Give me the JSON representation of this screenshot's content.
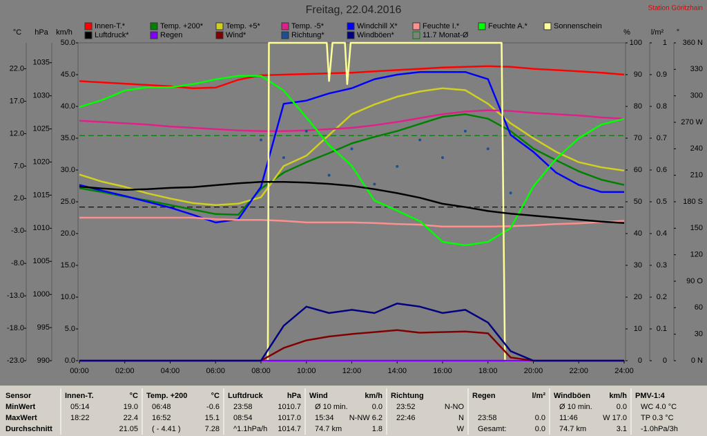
{
  "chart_data": {
    "type": "line",
    "title": "Freitag, 22.04.2016",
    "station": "Station Göritzhain",
    "x": [
      0,
      1,
      2,
      3,
      4,
      5,
      6,
      7,
      8,
      9,
      10,
      11,
      12,
      13,
      14,
      15,
      16,
      17,
      18,
      19,
      20,
      21,
      22,
      23,
      24
    ],
    "xlim": [
      0,
      24
    ],
    "xticks": [
      {
        "value": 0,
        "label": "00:00"
      },
      {
        "value": 2,
        "label": "02:00"
      },
      {
        "value": 4,
        "label": "04:00"
      },
      {
        "value": 6,
        "label": "06:00"
      },
      {
        "value": 8,
        "label": "08:00"
      },
      {
        "value": 10,
        "label": "10:00"
      },
      {
        "value": 12,
        "label": "12:00"
      },
      {
        "value": 14,
        "label": "14:00"
      },
      {
        "value": 16,
        "label": "16:00"
      },
      {
        "value": 18,
        "label": "18:00"
      },
      {
        "value": 20,
        "label": "20:00"
      },
      {
        "value": 22,
        "label": "22:00"
      },
      {
        "value": 24,
        "label": "24:00"
      }
    ],
    "y_axes": [
      {
        "label": "°C",
        "lim": [
          -23,
          26
        ],
        "ticks": [
          {
            "value": 22,
            "label": "22.0"
          },
          {
            "value": 17,
            "label": "17.0"
          },
          {
            "value": 12,
            "label": "12.0"
          },
          {
            "value": 7,
            "label": "7.0"
          },
          {
            "value": 2,
            "label": "2.0"
          },
          {
            "value": -3,
            "label": "-3.0"
          },
          {
            "value": -8,
            "label": "-8.0"
          },
          {
            "value": -13,
            "label": "-13.0"
          },
          {
            "value": -18,
            "label": "-18.0"
          },
          {
            "value": -23,
            "label": "-23.0"
          }
        ]
      },
      {
        "label": "hPa",
        "lim": [
          990,
          1038
        ],
        "ticks": [
          1035,
          1030,
          1025,
          1020,
          1015,
          1010,
          1005,
          1000,
          995,
          990
        ]
      },
      {
        "label": "km/h",
        "lim": [
          0,
          50
        ],
        "ticks": [
          {
            "value": 50,
            "label": "50.0"
          },
          {
            "value": 45,
            "label": "45.0"
          },
          {
            "value": 40,
            "label": "40.0"
          },
          {
            "value": 35,
            "label": "35.0"
          },
          {
            "value": 30,
            "label": "30.0"
          },
          {
            "value": 25,
            "label": "25.0"
          },
          {
            "value": 20,
            "label": "20.0"
          },
          {
            "value": 15,
            "label": "15.0"
          },
          {
            "value": 10,
            "label": "10.0"
          },
          {
            "value": 5,
            "label": "5.0"
          },
          {
            "value": 0,
            "label": "0.0"
          }
        ]
      },
      {
        "label": "%",
        "lim": [
          0,
          100
        ],
        "ticks": [
          100,
          90,
          80,
          70,
          60,
          50,
          40,
          30,
          20,
          10,
          0
        ]
      },
      {
        "label": "l/m²",
        "lim": [
          0,
          1
        ],
        "ticks": [
          1,
          0.9,
          0.8,
          0.7,
          0.6,
          0.5,
          0.4,
          0.3,
          0.2,
          0.1,
          0
        ]
      },
      {
        "label": "°",
        "lim": [
          0,
          360
        ],
        "ticks": [
          {
            "value": 360,
            "label": "360 N"
          },
          330,
          300,
          {
            "value": 270,
            "label": "270 W"
          },
          240,
          210,
          {
            "value": 180,
            "label": "180 S"
          },
          150,
          120,
          {
            "value": 90,
            "label": "90 O"
          },
          60,
          30,
          {
            "value": 0,
            "label": "0 N"
          }
        ]
      }
    ],
    "series": [
      {
        "name": "Innen-T.*",
        "color": "#ff0000",
        "axis": 0,
        "values": [
          20.1,
          19.9,
          19.7,
          19.5,
          19.3,
          19.0,
          19.1,
          20.3,
          21.0,
          21.1,
          21.2,
          21.3,
          21.4,
          21.6,
          21.8,
          22.0,
          22.2,
          22.3,
          22.4,
          22.3,
          22.0,
          21.8,
          21.6,
          21.4,
          21.1
        ]
      },
      {
        "name": "Temp. +200*",
        "color": "#008000",
        "axis": 0,
        "values": [
          3.6,
          3.0,
          2.3,
          1.7,
          1.0,
          0.3,
          -0.4,
          -0.5,
          3.5,
          6.0,
          7.6,
          9.0,
          10.5,
          11.5,
          12.4,
          13.5,
          14.6,
          15.0,
          14.3,
          12.4,
          9.7,
          7.9,
          6.2,
          4.9,
          4.1
        ]
      },
      {
        "name": "Temp. +5*",
        "color": "#d0d020",
        "axis": 0,
        "values": [
          5.7,
          4.6,
          3.8,
          2.8,
          2.0,
          1.3,
          1.0,
          1.2,
          2.2,
          7.0,
          8.6,
          11.8,
          15.0,
          16.5,
          17.7,
          18.5,
          19.0,
          18.7,
          16.6,
          13.6,
          11.3,
          9.2,
          7.6,
          6.8,
          6.3
        ]
      },
      {
        "name": "Temp. -5*",
        "color": "#e0208a",
        "axis": 0,
        "values": [
          14.0,
          13.8,
          13.6,
          13.4,
          13.1,
          12.9,
          12.7,
          12.5,
          12.4,
          12.4,
          12.5,
          12.7,
          12.9,
          13.3,
          13.8,
          14.4,
          15.0,
          15.4,
          15.6,
          15.5,
          15.2,
          15.0,
          14.8,
          14.5,
          14.3
        ]
      },
      {
        "name": "Windchill X*",
        "color": "#0000ff",
        "axis": 0,
        "values": [
          4.1,
          3.2,
          2.4,
          1.5,
          0.6,
          -0.5,
          -1.7,
          -1.2,
          3.8,
          16.6,
          17.1,
          18.2,
          19.0,
          20.4,
          21.1,
          21.5,
          21.5,
          21.5,
          20.4,
          11.8,
          9.2,
          6.0,
          4.1,
          3.0,
          3.0
        ]
      },
      {
        "name": "Feuchte I.*",
        "color": "#ff9090",
        "axis": 3,
        "values": [
          45,
          45,
          45,
          45,
          45,
          45,
          44.5,
          44.3,
          44.3,
          44.0,
          43.5,
          43.5,
          43.5,
          43.3,
          43.0,
          42.8,
          42.2,
          42.2,
          42.2,
          42.3,
          42.6,
          43.0,
          43.2,
          43.6,
          44.0
        ]
      },
      {
        "name": "Feuchte A.*",
        "color": "#00ff00",
        "axis": 3,
        "values": [
          79.8,
          82,
          85,
          86,
          86,
          87,
          88.5,
          89.6,
          89.6,
          85,
          76.5,
          67.8,
          61.3,
          50.4,
          47.2,
          43.9,
          37.4,
          36.3,
          37.4,
          41.7,
          54.8,
          63.5,
          70,
          74.3,
          76.1
        ]
      },
      {
        "name": "Sonnenschein",
        "color": "#ffff99",
        "axis": 3,
        "x": [
          0,
          8.3,
          8.35,
          10.9,
          11.0,
          11.15,
          11.7,
          11.8,
          11.95,
          18.6,
          18.75,
          24
        ],
        "values": [
          0,
          0,
          100,
          100,
          88,
          100,
          100,
          87,
          100,
          100,
          0,
          0
        ]
      },
      {
        "name": "Luftdruck*",
        "color": "#000000",
        "axis": 1,
        "values": [
          1016.3,
          1016.0,
          1015.8,
          1015.9,
          1016.1,
          1016.2,
          1016.5,
          1016.8,
          1017.0,
          1017.0,
          1016.9,
          1016.7,
          1016.4,
          1015.9,
          1015.3,
          1014.6,
          1013.7,
          1013.2,
          1012.6,
          1012.2,
          1011.9,
          1011.6,
          1011.3,
          1011.0,
          1010.8
        ]
      },
      {
        "name": "Regen",
        "color": "#8000ff",
        "axis": 4,
        "values": [
          0,
          0,
          0,
          0,
          0,
          0,
          0,
          0,
          0,
          0,
          0,
          0,
          0,
          0,
          0,
          0,
          0,
          0,
          0,
          0,
          0,
          0,
          0,
          0,
          0
        ]
      },
      {
        "name": "Wind*",
        "color": "#800000",
        "axis": 2,
        "values": [
          0,
          0,
          0,
          0,
          0,
          0,
          0,
          0,
          0,
          2.0,
          3.2,
          3.8,
          4.2,
          4.5,
          4.8,
          4.4,
          4.5,
          4.6,
          4.3,
          0.5,
          0,
          0,
          0,
          0,
          0
        ]
      },
      {
        "name": "Richtung*",
        "color": "#1f4f8f",
        "axis": 5,
        "style": "dots",
        "values": [
          null,
          null,
          null,
          null,
          null,
          null,
          null,
          null,
          250,
          230,
          260,
          210,
          240,
          200,
          220,
          250,
          230,
          260,
          240,
          190,
          null,
          null,
          null,
          null,
          null
        ]
      },
      {
        "name": "Windböen*",
        "color": "#000080",
        "axis": 2,
        "values": [
          0,
          0,
          0,
          0,
          0,
          0,
          0,
          0,
          0,
          5.5,
          8.5,
          7.5,
          8.0,
          7.5,
          9.0,
          8.5,
          7.5,
          8.0,
          6.0,
          1.5,
          0,
          0,
          0,
          0,
          0
        ]
      }
    ],
    "reference_lines": [
      {
        "label": "11.7 Monat-Ø",
        "value": 11.7,
        "axis": 0,
        "color": "#008000"
      },
      {
        "value": 1013.2,
        "axis": 1,
        "color": "#000000"
      }
    ]
  },
  "stats": {
    "row_labels": [
      "Sensor",
      "MinWert",
      "MaxWert",
      "Durchschnitt"
    ],
    "columns": [
      {
        "title": "Innen-T.",
        "unit": "°C",
        "rows": [
          {
            "left": "05:14",
            "right": "19.0"
          },
          {
            "left": "18:22",
            "right": "22.4"
          },
          {
            "right": "21.05"
          }
        ]
      },
      {
        "title": "Temp. +200",
        "unit": "°C",
        "rows": [
          {
            "left": "06:48",
            "right": "-0.6"
          },
          {
            "left": "16:52",
            "right": "15.1"
          },
          {
            "left": "( - 4.41 )",
            "right": "7.28"
          }
        ]
      },
      {
        "title": "Luftdruck",
        "unit": "hPa",
        "rows": [
          {
            "left": "23:58",
            "right": "1010.7"
          },
          {
            "left": "08:54",
            "right": "1017.0"
          },
          {
            "left": "^1.1hPa/h",
            "right": "1014.7"
          }
        ]
      },
      {
        "title": "Wind",
        "unit": "km/h",
        "rows": [
          {
            "left": "Ø 10 min.",
            "right": "0.0"
          },
          {
            "left": "15:34",
            "right": "N-NW 6.2"
          },
          {
            "left": "74.7 km",
            "right": "1.8"
          }
        ]
      },
      {
        "title": "Richtung",
        "rows": [
          {
            "left": "23:52",
            "right": "N-NO"
          },
          {
            "left": "22:46",
            "right": "N"
          },
          {
            "right": "W"
          }
        ]
      },
      {
        "title": "Regen",
        "unit": "l/m²",
        "rows": [
          {},
          {
            "left": "23:58",
            "right": "0.0"
          },
          {
            "left": "Gesamt:",
            "right": "0.0"
          }
        ]
      },
      {
        "title": "Windböen",
        "unit": "km/h",
        "rows": [
          {
            "left": "Ø 10 min.",
            "right": "0.0"
          },
          {
            "left": "11:46",
            "right": "W 17.0"
          },
          {
            "left": "74.7 km",
            "right": "3.1"
          }
        ]
      },
      {
        "title": "PMV-1:4",
        "rows": [
          {
            "left": "WC 4.0 °C"
          },
          {
            "left": "TP 0.3 °C"
          },
          {
            "left": "-1.0hPa/3h"
          }
        ]
      }
    ]
  }
}
